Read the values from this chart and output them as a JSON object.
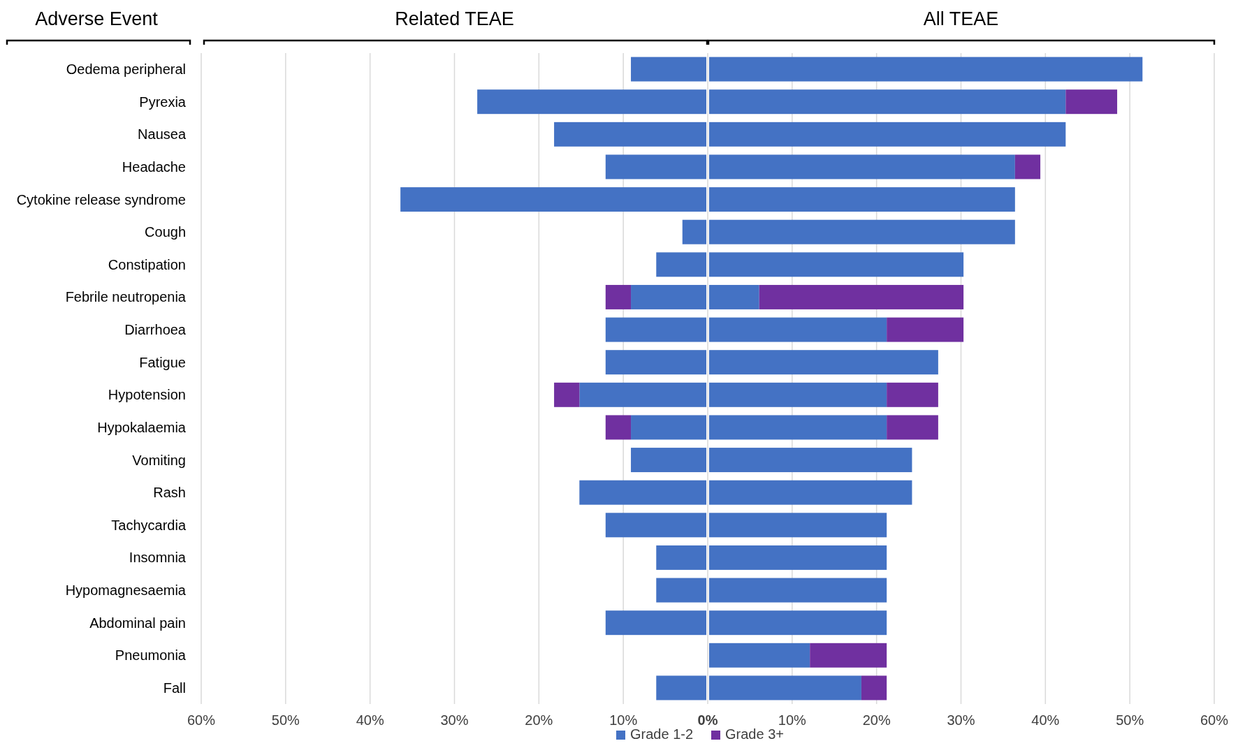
{
  "chart_data": {
    "type": "bar",
    "orientation": "horizontal",
    "stacked": true,
    "ylabel": "Adverse Event",
    "annotations": [
      "Related TEAE",
      "All TEAE"
    ],
    "categories": [
      "Oedema peripheral",
      "Pyrexia",
      "Nausea",
      "Headache",
      "Cytokine release syndrome",
      "Cough",
      "Constipation",
      "Febrile neutropenia",
      "Diarrhoea",
      "Fatigue",
      "Hypotension",
      "Hypokalaemia",
      "Vomiting",
      "Rash",
      "Tachycardia",
      "Insomnia",
      "Hypomagnesaemia",
      "Abdominal pain",
      "Pneumonia",
      "Fall"
    ],
    "series": [
      {
        "name": "Grade 1-2",
        "color": "#4472c4",
        "values": [
          51.5,
          42.4,
          42.4,
          36.4,
          36.4,
          36.4,
          30.3,
          6.1,
          21.2,
          27.3,
          21.2,
          21.2,
          24.2,
          24.2,
          21.2,
          21.2,
          21.2,
          21.2,
          12.1,
          18.2
        ]
      },
      {
        "name": "Grade 3+",
        "color": "#7030a0",
        "values": [
          0,
          6.1,
          0,
          3.0,
          0,
          0,
          0,
          24.2,
          9.1,
          0,
          6.1,
          6.1,
          0,
          0,
          0,
          0,
          0,
          0,
          9.1,
          3.0
        ]
      },
      {
        "color": "#4472c4",
        "values": [
          -9.1,
          -27.3,
          -18.2,
          -12.1,
          -36.4,
          -3.0,
          -6.1,
          -9.1,
          -12.1,
          -12.1,
          -15.2,
          -9.1,
          -9.1,
          -15.2,
          -12.1,
          -6.1,
          -6.1,
          -12.1,
          0,
          -6.1
        ]
      },
      {
        "color": "#7030a0",
        "values": [
          0,
          0,
          0,
          0,
          0,
          0,
          0,
          -3.0,
          0,
          0,
          -3.0,
          -3.0,
          0,
          0,
          0,
          0,
          0,
          0,
          0,
          0
        ]
      }
    ],
    "xlim": [
      -60,
      60
    ],
    "xticks": [
      {
        "value": -60,
        "label": "60%"
      },
      {
        "value": -50,
        "label": "50%"
      },
      {
        "value": -40,
        "label": "40%"
      },
      {
        "value": -30,
        "label": "30%"
      },
      {
        "value": -20,
        "label": "20%"
      },
      {
        "value": -10,
        "label": "10%"
      },
      {
        "value": 0,
        "label": "0%"
      },
      {
        "value": 10,
        "label": "10%"
      },
      {
        "value": 20,
        "label": "20%"
      },
      {
        "value": 30,
        "label": "30%"
      },
      {
        "value": 40,
        "label": "40%"
      },
      {
        "value": 50,
        "label": "50%"
      },
      {
        "value": 60,
        "label": "60%"
      }
    ],
    "grid": "x",
    "legend": "bottom"
  }
}
